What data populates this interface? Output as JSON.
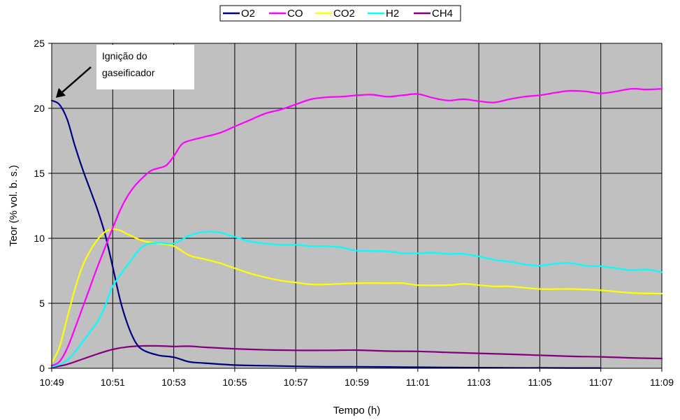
{
  "chart_data": {
    "type": "line",
    "xlabel": "Tempo (h)",
    "ylabel": "Teor (% vol. b. s.)",
    "ylim": [
      0,
      25
    ],
    "yticks": [
      "0",
      "5",
      "10",
      "15",
      "20",
      "25"
    ],
    "xlim": [
      "10:49",
      "11:09"
    ],
    "xticks": [
      "10:49",
      "10:51",
      "10:53",
      "10:55",
      "10:57",
      "10:59",
      "11:01",
      "11:03",
      "11:05",
      "11:07",
      "11:09"
    ],
    "grid": true,
    "legend_position": "top-center",
    "plot_background": "#c0c0c0",
    "annotation": {
      "lines": [
        "Ignição do",
        "gaseificador"
      ],
      "x": "10:49",
      "y": 20.6
    },
    "series": [
      {
        "name": "O2",
        "color": "#000080",
        "points": [
          [
            "10:49:00",
            20.6
          ],
          [
            "10:49:15",
            20.3
          ],
          [
            "10:49:30",
            19.2
          ],
          [
            "10:49:45",
            17.2
          ],
          [
            "10:50:00",
            15.4
          ],
          [
            "10:50:15",
            13.8
          ],
          [
            "10:50:30",
            12.2
          ],
          [
            "10:50:45",
            10.3
          ],
          [
            "10:51:00",
            7.8
          ],
          [
            "10:51:15",
            5.2
          ],
          [
            "10:51:30",
            3.3
          ],
          [
            "10:51:45",
            2.0
          ],
          [
            "10:52:00",
            1.4
          ],
          [
            "10:52:30",
            1.0
          ],
          [
            "10:53:00",
            0.85
          ],
          [
            "10:53:30",
            0.5
          ],
          [
            "10:54:00",
            0.4
          ],
          [
            "10:55:00",
            0.25
          ],
          [
            "10:56:00",
            0.2
          ],
          [
            "10:57:00",
            0.15
          ],
          [
            "10:58:00",
            0.12
          ],
          [
            "10:59:00",
            0.12
          ],
          [
            "11:00:00",
            0.1
          ],
          [
            "11:01:00",
            0.08
          ],
          [
            "11:02:00",
            0.06
          ],
          [
            "11:03:00",
            0.05
          ],
          [
            "11:04:00",
            0.03
          ],
          [
            "11:05:00",
            0.03
          ],
          [
            "11:06:00",
            0.02
          ],
          [
            "11:07:00",
            0.02
          ]
        ]
      },
      {
        "name": "CO",
        "color": "#ff00ff",
        "points": [
          [
            "10:49:00",
            0.2
          ],
          [
            "10:49:15",
            0.5
          ],
          [
            "10:49:30",
            1.5
          ],
          [
            "10:49:45",
            3.0
          ],
          [
            "10:50:00",
            4.6
          ],
          [
            "10:50:15",
            6.2
          ],
          [
            "10:50:30",
            7.8
          ],
          [
            "10:50:45",
            9.3
          ],
          [
            "10:51:00",
            10.8
          ],
          [
            "10:51:15",
            12.2
          ],
          [
            "10:51:30",
            13.3
          ],
          [
            "10:51:45",
            14.1
          ],
          [
            "10:52:00",
            14.7
          ],
          [
            "10:52:15",
            15.2
          ],
          [
            "10:52:30",
            15.4
          ],
          [
            "10:52:45",
            15.6
          ],
          [
            "10:53:00",
            16.3
          ],
          [
            "10:53:15",
            17.2
          ],
          [
            "10:53:30",
            17.5
          ],
          [
            "10:54:00",
            17.8
          ],
          [
            "10:54:30",
            18.1
          ],
          [
            "10:55:00",
            18.6
          ],
          [
            "10:55:30",
            19.1
          ],
          [
            "10:56:00",
            19.6
          ],
          [
            "10:56:30",
            19.9
          ],
          [
            "10:57:00",
            20.3
          ],
          [
            "10:57:30",
            20.7
          ],
          [
            "10:58:00",
            20.85
          ],
          [
            "10:58:30",
            20.9
          ],
          [
            "10:59:00",
            21.0
          ],
          [
            "10:59:30",
            21.05
          ],
          [
            "11:00:00",
            20.9
          ],
          [
            "11:00:30",
            21.0
          ],
          [
            "11:01:00",
            21.1
          ],
          [
            "11:01:30",
            20.8
          ],
          [
            "11:02:00",
            20.6
          ],
          [
            "11:02:30",
            20.7
          ],
          [
            "11:03:00",
            20.55
          ],
          [
            "11:03:30",
            20.45
          ],
          [
            "11:04:00",
            20.7
          ],
          [
            "11:04:30",
            20.9
          ],
          [
            "11:05:00",
            21.0
          ],
          [
            "11:05:30",
            21.2
          ],
          [
            "11:06:00",
            21.35
          ],
          [
            "11:06:30",
            21.3
          ],
          [
            "11:07:00",
            21.15
          ],
          [
            "11:07:30",
            21.3
          ],
          [
            "11:08:00",
            21.5
          ],
          [
            "11:08:30",
            21.45
          ],
          [
            "11:09:00",
            21.5
          ]
        ]
      },
      {
        "name": "CO2",
        "color": "#ffff00",
        "points": [
          [
            "10:49:00",
            0.4
          ],
          [
            "10:49:15",
            1.6
          ],
          [
            "10:49:30",
            3.8
          ],
          [
            "10:49:45",
            6.0
          ],
          [
            "10:50:00",
            7.8
          ],
          [
            "10:50:15",
            9.0
          ],
          [
            "10:50:30",
            9.9
          ],
          [
            "10:50:45",
            10.5
          ],
          [
            "10:51:00",
            10.7
          ],
          [
            "10:51:15",
            10.6
          ],
          [
            "10:51:30",
            10.3
          ],
          [
            "10:52:00",
            9.8
          ],
          [
            "10:52:30",
            9.6
          ],
          [
            "10:53:00",
            9.4
          ],
          [
            "10:53:30",
            8.7
          ],
          [
            "10:54:00",
            8.4
          ],
          [
            "10:54:30",
            8.1
          ],
          [
            "10:55:00",
            7.7
          ],
          [
            "10:55:30",
            7.3
          ],
          [
            "10:56:00",
            7.0
          ],
          [
            "10:56:30",
            6.75
          ],
          [
            "10:57:00",
            6.6
          ],
          [
            "10:57:30",
            6.45
          ],
          [
            "10:58:00",
            6.45
          ],
          [
            "10:59:00",
            6.55
          ],
          [
            "11:00:00",
            6.55
          ],
          [
            "11:00:30",
            6.55
          ],
          [
            "11:01:00",
            6.4
          ],
          [
            "11:02:00",
            6.4
          ],
          [
            "11:02:30",
            6.5
          ],
          [
            "11:03:00",
            6.4
          ],
          [
            "11:03:30",
            6.3
          ],
          [
            "11:04:00",
            6.3
          ],
          [
            "11:05:00",
            6.1
          ],
          [
            "11:06:00",
            6.1
          ],
          [
            "11:07:00",
            6.0
          ],
          [
            "11:08:00",
            5.8
          ],
          [
            "11:09:00",
            5.75
          ]
        ]
      },
      {
        "name": "H2",
        "color": "#00ffff",
        "points": [
          [
            "10:49:00",
            0.1
          ],
          [
            "10:49:30",
            0.6
          ],
          [
            "10:50:00",
            2.0
          ],
          [
            "10:50:30",
            3.6
          ],
          [
            "10:50:45",
            4.8
          ],
          [
            "10:51:00",
            6.3
          ],
          [
            "10:51:30",
            8.0
          ],
          [
            "10:52:00",
            9.4
          ],
          [
            "10:52:30",
            9.65
          ],
          [
            "10:53:00",
            9.6
          ],
          [
            "10:53:30",
            10.2
          ],
          [
            "10:54:00",
            10.5
          ],
          [
            "10:54:30",
            10.45
          ],
          [
            "10:55:00",
            10.1
          ],
          [
            "10:55:30",
            9.75
          ],
          [
            "10:56:00",
            9.6
          ],
          [
            "10:56:30",
            9.5
          ],
          [
            "10:57:00",
            9.5
          ],
          [
            "10:57:30",
            9.4
          ],
          [
            "10:58:00",
            9.4
          ],
          [
            "10:58:30",
            9.3
          ],
          [
            "10:59:00",
            9.05
          ],
          [
            "11:00:00",
            9.0
          ],
          [
            "11:00:30",
            8.85
          ],
          [
            "11:01:00",
            8.85
          ],
          [
            "11:01:30",
            8.9
          ],
          [
            "11:02:00",
            8.8
          ],
          [
            "11:02:30",
            8.8
          ],
          [
            "11:03:00",
            8.6
          ],
          [
            "11:03:30",
            8.35
          ],
          [
            "11:04:00",
            8.2
          ],
          [
            "11:04:30",
            8.0
          ],
          [
            "11:05:00",
            7.9
          ],
          [
            "11:05:30",
            8.05
          ],
          [
            "11:06:00",
            8.1
          ],
          [
            "11:06:30",
            7.9
          ],
          [
            "11:07:00",
            7.85
          ],
          [
            "11:07:30",
            7.7
          ],
          [
            "11:08:00",
            7.55
          ],
          [
            "11:08:30",
            7.6
          ],
          [
            "11:09:00",
            7.4
          ]
        ]
      },
      {
        "name": "CH4",
        "color": "#800080",
        "points": [
          [
            "10:49:00",
            0.05
          ],
          [
            "10:49:30",
            0.3
          ],
          [
            "10:50:00",
            0.7
          ],
          [
            "10:50:30",
            1.1
          ],
          [
            "10:51:00",
            1.45
          ],
          [
            "10:51:30",
            1.65
          ],
          [
            "10:52:00",
            1.72
          ],
          [
            "10:52:30",
            1.72
          ],
          [
            "10:53:00",
            1.68
          ],
          [
            "10:53:30",
            1.7
          ],
          [
            "10:54:00",
            1.62
          ],
          [
            "10:55:00",
            1.5
          ],
          [
            "10:56:00",
            1.42
          ],
          [
            "10:57:00",
            1.38
          ],
          [
            "10:58:00",
            1.38
          ],
          [
            "10:59:00",
            1.4
          ],
          [
            "11:00:00",
            1.32
          ],
          [
            "11:01:00",
            1.3
          ],
          [
            "11:02:00",
            1.22
          ],
          [
            "11:03:00",
            1.15
          ],
          [
            "11:04:00",
            1.08
          ],
          [
            "11:05:00",
            1.0
          ],
          [
            "11:06:00",
            0.92
          ],
          [
            "11:07:00",
            0.88
          ],
          [
            "11:08:00",
            0.8
          ],
          [
            "11:09:00",
            0.75
          ]
        ]
      }
    ]
  }
}
